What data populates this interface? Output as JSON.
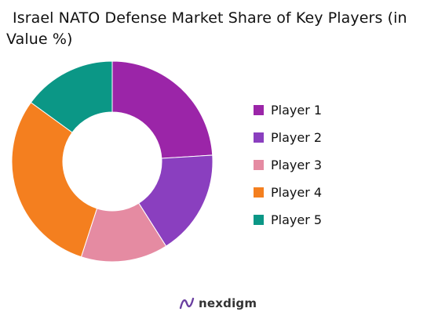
{
  "title_line1": "Israel NATO Defense Market Share of Key Players (in",
  "title_line2": "Value %)",
  "brand": "nexdigm",
  "colors": {
    "background": "#ffffff",
    "player1": "#9b25a8",
    "player2": "#8a3fbf",
    "player3": "#e58ba2",
    "player4": "#f47f1f",
    "player5": "#0b9786"
  },
  "chart_data": {
    "type": "pie",
    "variant": "donut",
    "title": "Israel NATO Defense Market Share of Key Players (in Value %)",
    "legend_position": "right",
    "categories": [
      "Player 1",
      "Player 2",
      "Player 3",
      "Player 4",
      "Player 5"
    ],
    "values": [
      24,
      17,
      14,
      30,
      15
    ],
    "series": [
      {
        "name": "Player 1",
        "value": 24,
        "color": "#9b25a8"
      },
      {
        "name": "Player 2",
        "value": 17,
        "color": "#8a3fbf"
      },
      {
        "name": "Player 3",
        "value": 14,
        "color": "#e58ba2"
      },
      {
        "name": "Player 4",
        "value": 30,
        "color": "#f47f1f"
      },
      {
        "name": "Player 5",
        "value": 15,
        "color": "#0b9786"
      }
    ]
  }
}
